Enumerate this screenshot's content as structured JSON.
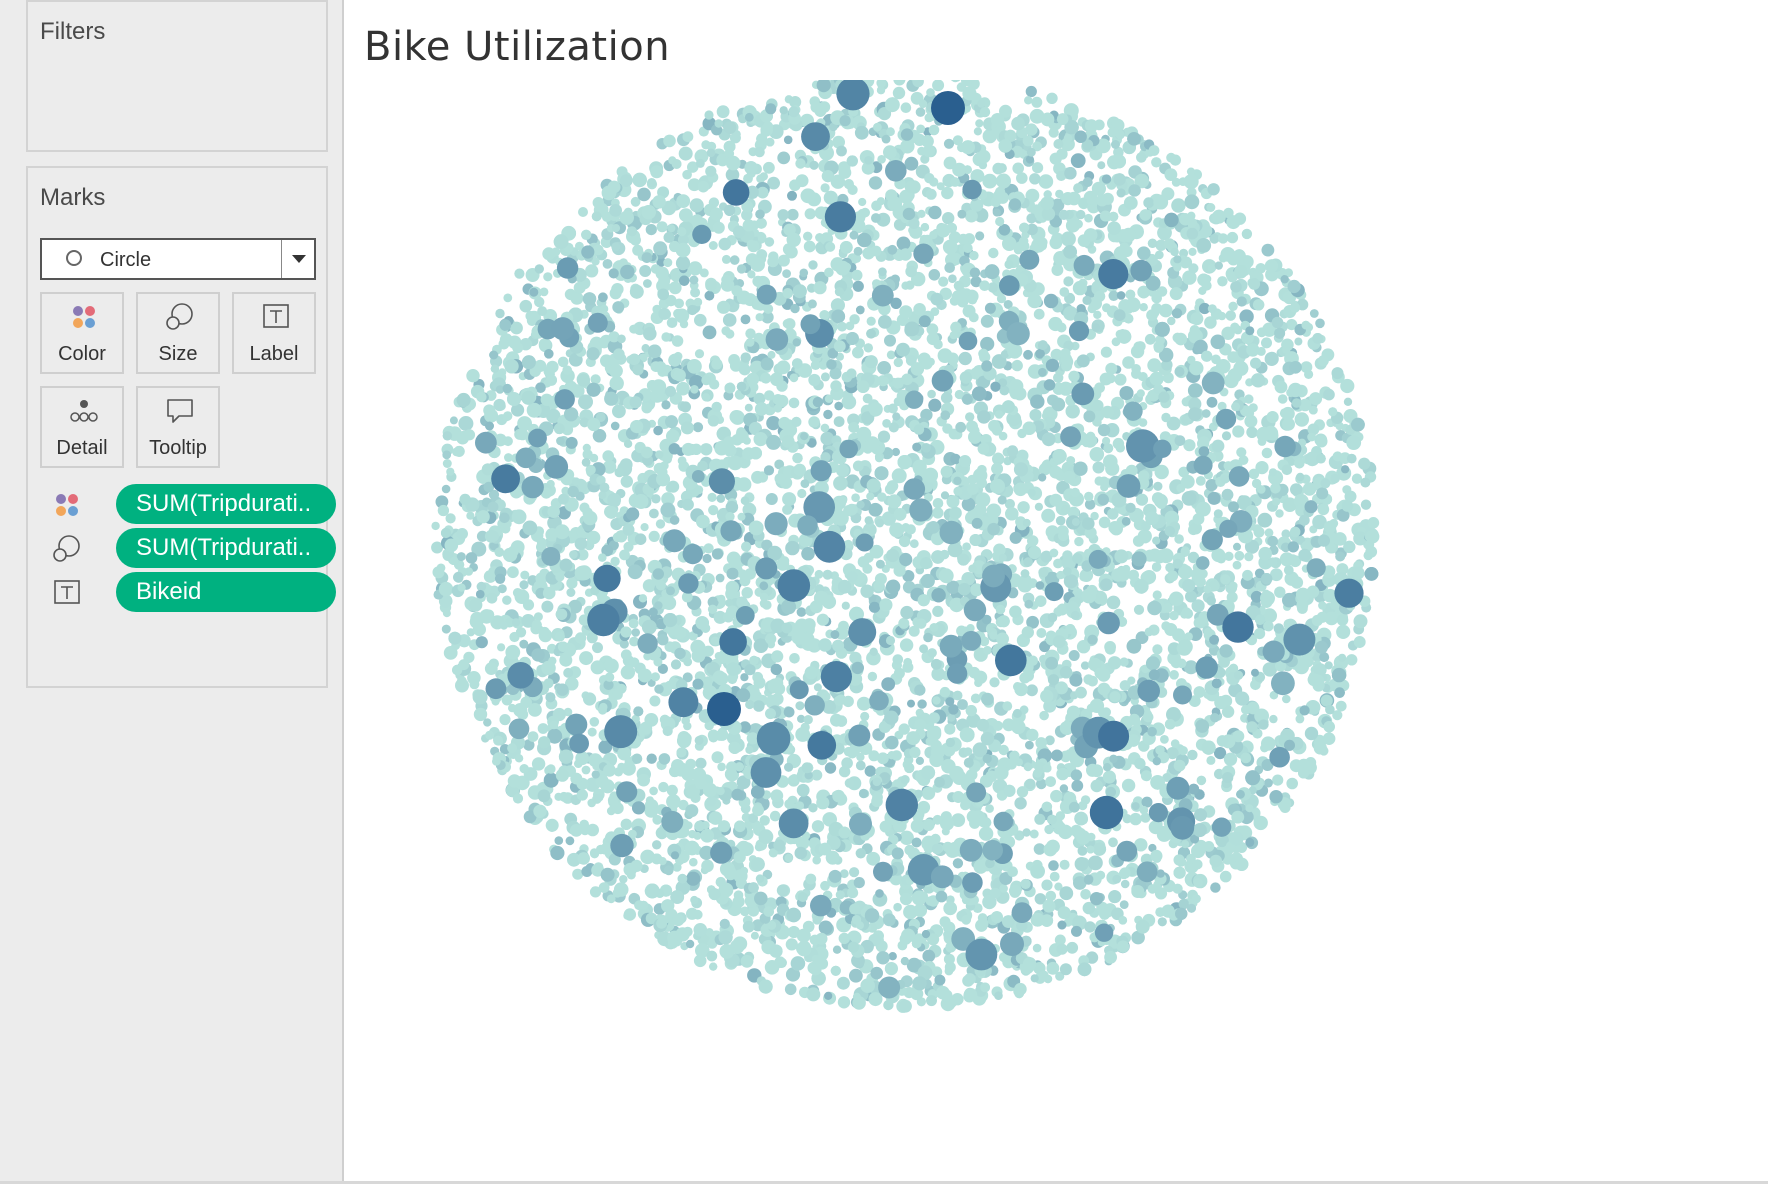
{
  "sidebar": {
    "filters_title": "Filters",
    "marks_title": "Marks",
    "mark_type": "Circle",
    "buttons": [
      {
        "label": "Color",
        "icon": "color-dots-icon"
      },
      {
        "label": "Size",
        "icon": "size-circles-icon"
      },
      {
        "label": "Label",
        "icon": "label-text-icon"
      },
      {
        "label": "Detail",
        "icon": "detail-dots-icon"
      },
      {
        "label": "Tooltip",
        "icon": "tooltip-bubble-icon"
      }
    ],
    "pills": [
      {
        "icon": "color-dots-icon",
        "label": "SUM(Tripdurati.."
      },
      {
        "icon": "size-circles-icon",
        "label": "SUM(Tripdurati.."
      },
      {
        "icon": "label-text-icon",
        "label": "Bikeid"
      }
    ]
  },
  "sheet": {
    "title": "Bike Utilization"
  },
  "colors": {
    "pill": "#00b180",
    "bubble_light": "#b3e0db",
    "bubble_mid": "#5fb3c5",
    "bubble_dark": "#2a5f8f"
  },
  "chart_data": {
    "type": "packed-bubble",
    "mark": "circle",
    "color_encoding": "SUM(Tripduration)",
    "size_encoding": "SUM(Tripduration)",
    "label_encoding": "Bikeid",
    "color_scale": [
      "#b3e0db",
      "#2a5f8f"
    ]
  }
}
